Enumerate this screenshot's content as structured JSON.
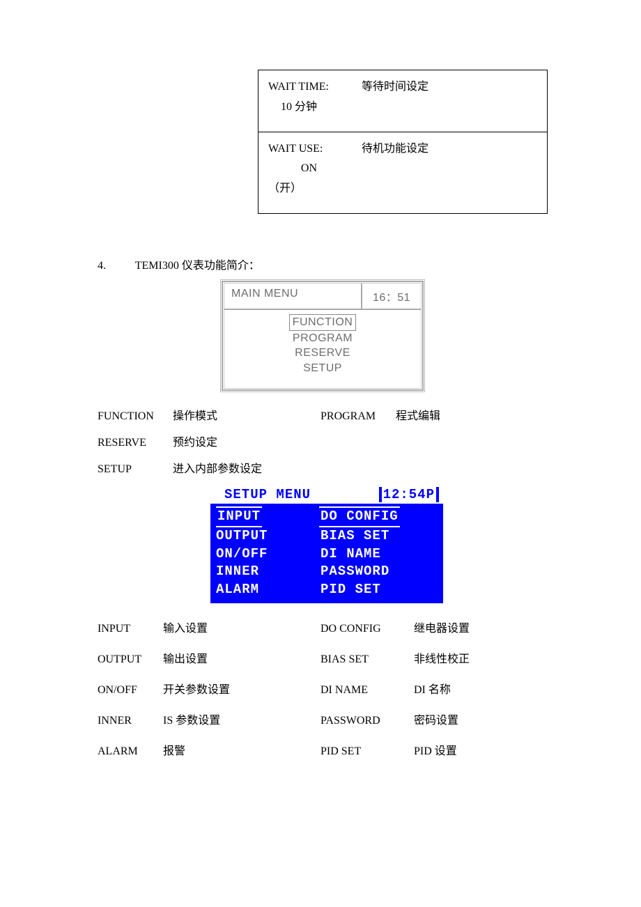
{
  "top_table": {
    "rows": [
      {
        "a": "WAIT TIME:",
        "b": "等待时间设定",
        "c": "10 分钟"
      },
      {
        "a": "WAIT  USE:",
        "b": "待机功能设定",
        "c": "ON",
        "sub": "（开）"
      }
    ]
  },
  "section": {
    "num": "4.",
    "title": "TEMI300 仪表功能简介："
  },
  "main_menu": {
    "title": "MAIN   MENU",
    "time": "16：51",
    "items": [
      "FUNCTION",
      "PROGRAM",
      "RESERVE",
      "SETUP"
    ],
    "selected_index": 0
  },
  "main_legend": {
    "row1": [
      {
        "term": "FUNCTION",
        "desc": "操作模式"
      },
      {
        "term": "PROGRAM",
        "desc": "程式编辑"
      }
    ],
    "row2": [
      {
        "term": "RESERVE",
        "desc": "预约设定"
      }
    ],
    "row3": [
      {
        "term": "SETUP",
        "desc": "进入内部参数设定"
      }
    ]
  },
  "setup_menu": {
    "title": "SETUP MENU",
    "time": "12:54P",
    "left": [
      "INPUT",
      "OUTPUT",
      "ON/OFF",
      "INNER",
      "ALARM"
    ],
    "right": [
      "DO CONFIG",
      "BIAS SET",
      "DI NAME",
      "PASSWORD",
      "PID SET"
    ],
    "left_selected_index": 0,
    "right_selected_index": 0,
    "colors": {
      "bg": "#0000ff",
      "fg": "#ffffff",
      "hdr_bg": "#ffffff",
      "hdr_fg": "#0000ff"
    }
  },
  "setup_legend": [
    {
      "l_term": "INPUT",
      "l_desc": "输入设置",
      "r_term": "DO   CONFIG",
      "r_desc": "继电器设置"
    },
    {
      "l_term": "OUTPUT",
      "l_desc": "输出设置",
      "r_term": "BIAS   SET",
      "r_desc": "非线性校正"
    },
    {
      "l_term": "ON/OFF",
      "l_desc": "开关参数设置",
      "r_term": "DI  NAME",
      "r_desc": "DI 名称"
    },
    {
      "l_term": "INNER",
      "l_desc": "IS 参数设置",
      "r_term": "PASSWORD",
      "r_desc": "密码设置"
    },
    {
      "l_term": "ALARM",
      "l_desc": "报警",
      "r_term": "PID  SET",
      "r_desc": "PID 设置"
    }
  ]
}
